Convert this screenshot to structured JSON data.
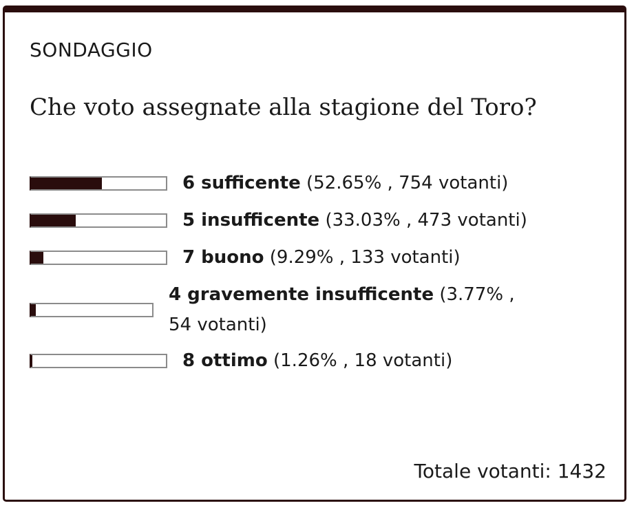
{
  "poll": {
    "label": "SONDAGGIO",
    "question": "Che voto assegnate alla stagione del Toro?",
    "options": [
      {
        "name": "6 sufficente",
        "stats": "(52.65% , 754 votanti)",
        "percent": 52.65
      },
      {
        "name": "5 insufficente",
        "stats": "(33.03% , 473 votanti)",
        "percent": 33.03
      },
      {
        "name": "7 buono",
        "stats": "(9.29% , 133 votanti)",
        "percent": 9.29
      },
      {
        "name": "4 gravemente insufficente",
        "stats": "(3.77% , 54 votanti)",
        "percent": 3.77
      },
      {
        "name": "8 ottimo",
        "stats": "(1.26% , 18 votanti)",
        "percent": 1.26
      }
    ],
    "total": "Totale votanti: 1432"
  },
  "colors": {
    "accent": "#2a0d0d",
    "bar_border": "#8b8b8b",
    "text": "#1a1a1a"
  }
}
